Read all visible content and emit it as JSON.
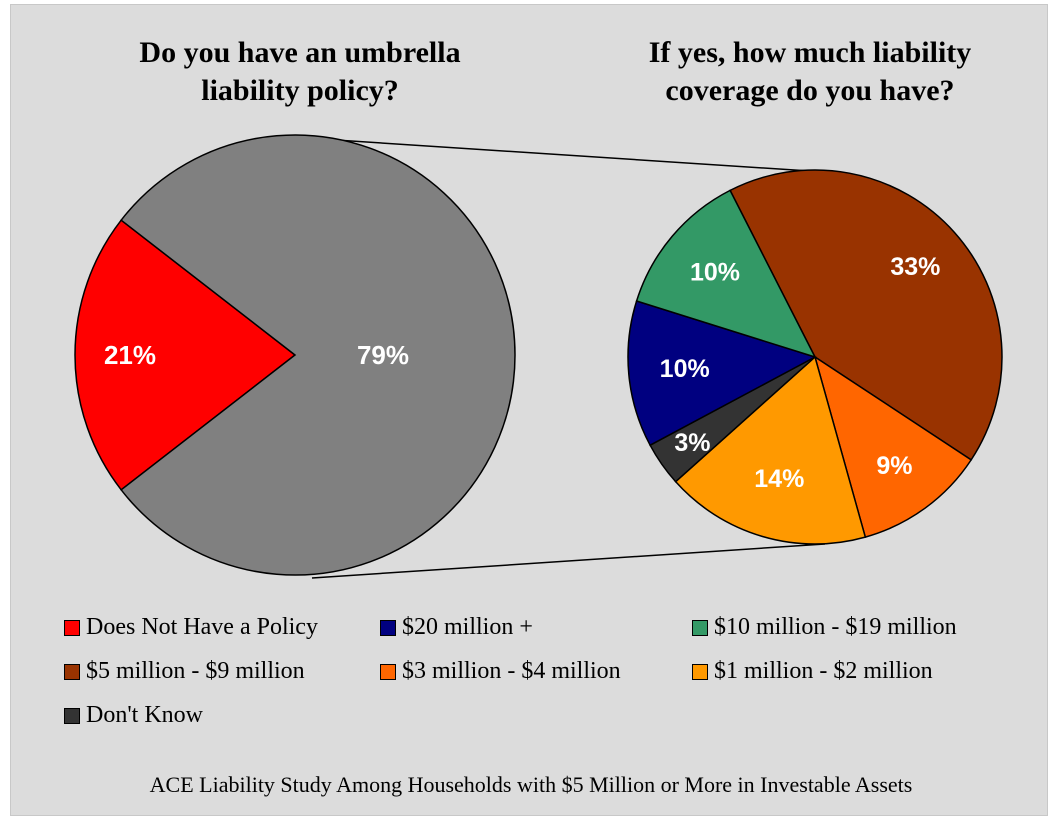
{
  "chart_data": [
    {
      "type": "pie",
      "title": "Do you have an umbrella liability policy?",
      "slices": [
        {
          "label": "Does Not Have a Policy",
          "value": 21,
          "display": "21%",
          "color": "#ff0000"
        },
        {
          "label": "",
          "value": 79,
          "display": "79%",
          "color": "#808080"
        }
      ]
    },
    {
      "type": "pie",
      "title": "If yes, how much liability coverage do you have?",
      "slices": [
        {
          "label": "$5 million - $9 million",
          "value": 33,
          "display": "33%",
          "color": "#993300"
        },
        {
          "label": "$3 million - $4 million",
          "value": 9,
          "display": "9%",
          "color": "#ff6600"
        },
        {
          "label": "$1 million - $2 million",
          "value": 14,
          "display": "14%",
          "color": "#ff9900"
        },
        {
          "label": "Don't Know",
          "value": 3,
          "display": "3%",
          "color": "#333333"
        },
        {
          "label": "$20 million +",
          "value": 10,
          "display": "10%",
          "color": "#000080"
        },
        {
          "label": "$10 million - $19 million",
          "value": 10,
          "display": "10%",
          "color": "#339966"
        }
      ]
    }
  ],
  "legend": [
    {
      "label": "Does Not Have a Policy",
      "color": "#ff0000"
    },
    {
      "label": "$20 million +",
      "color": "#000080"
    },
    {
      "label": "$10 million - $19 million",
      "color": "#339966"
    },
    {
      "label": "$5 million - $9 million",
      "color": "#993300"
    },
    {
      "label": "$3 million - $4 million",
      "color": "#ff6600"
    },
    {
      "label": "$1 million - $2 million",
      "color": "#ff9900"
    },
    {
      "label": "Don't Know",
      "color": "#333333"
    }
  ],
  "footer": "ACE Liability Study Among Households with $5 Million or More in Investable Assets",
  "background_color": "#dcdcdc"
}
